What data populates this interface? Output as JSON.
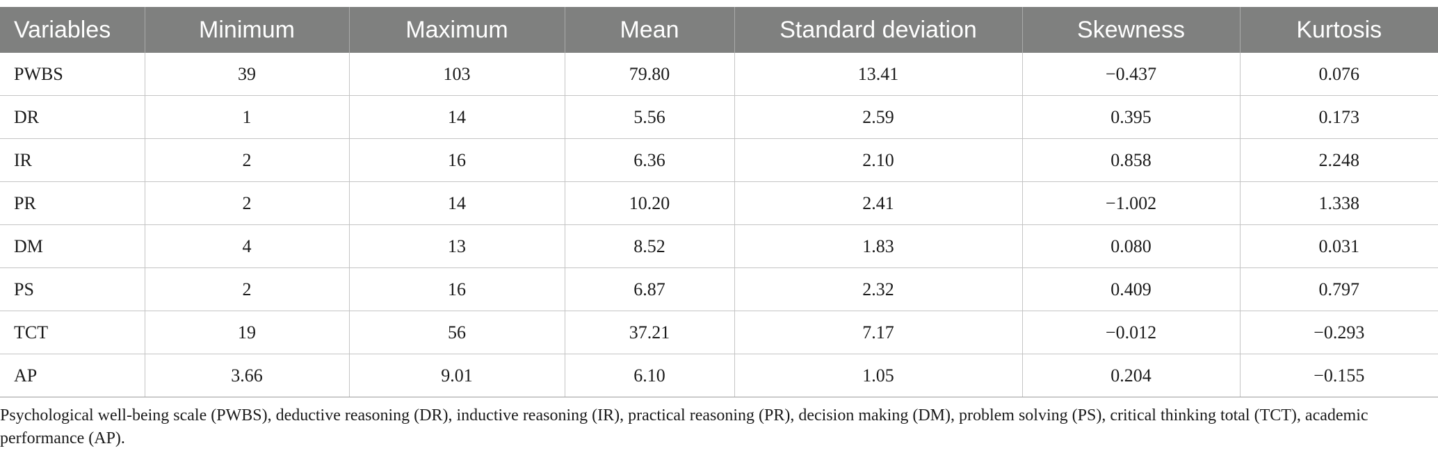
{
  "table": {
    "headers": [
      "Variables",
      "Minimum",
      "Maximum",
      "Mean",
      "Standard deviation",
      "Skewness",
      "Kurtosis"
    ],
    "rows": [
      [
        "PWBS",
        "39",
        "103",
        "79.80",
        "13.41",
        "−0.437",
        "0.076"
      ],
      [
        "DR",
        "1",
        "14",
        "5.56",
        "2.59",
        "0.395",
        "0.173"
      ],
      [
        "IR",
        "2",
        "16",
        "6.36",
        "2.10",
        "0.858",
        "2.248"
      ],
      [
        "PR",
        "2",
        "14",
        "10.20",
        "2.41",
        "−1.002",
        "1.338"
      ],
      [
        "DM",
        "4",
        "13",
        "8.52",
        "1.83",
        "0.080",
        "0.031"
      ],
      [
        "PS",
        "2",
        "16",
        "6.87",
        "2.32",
        "0.409",
        "0.797"
      ],
      [
        "TCT",
        "19",
        "56",
        "37.21",
        "7.17",
        "−0.012",
        "−0.293"
      ],
      [
        "AP",
        "3.66",
        "9.01",
        "6.10",
        "1.05",
        "0.204",
        "−0.155"
      ]
    ]
  },
  "footnote": "Psychological well-being scale (PWBS), deductive reasoning (DR), inductive reasoning (IR), practical reasoning (PR), decision making (DM), problem solving (PS), critical thinking total (TCT), academic performance (AP).",
  "colors": {
    "header_bg": "#7f807f",
    "header_text": "#ffffff",
    "grid": "#c4c4c4"
  }
}
